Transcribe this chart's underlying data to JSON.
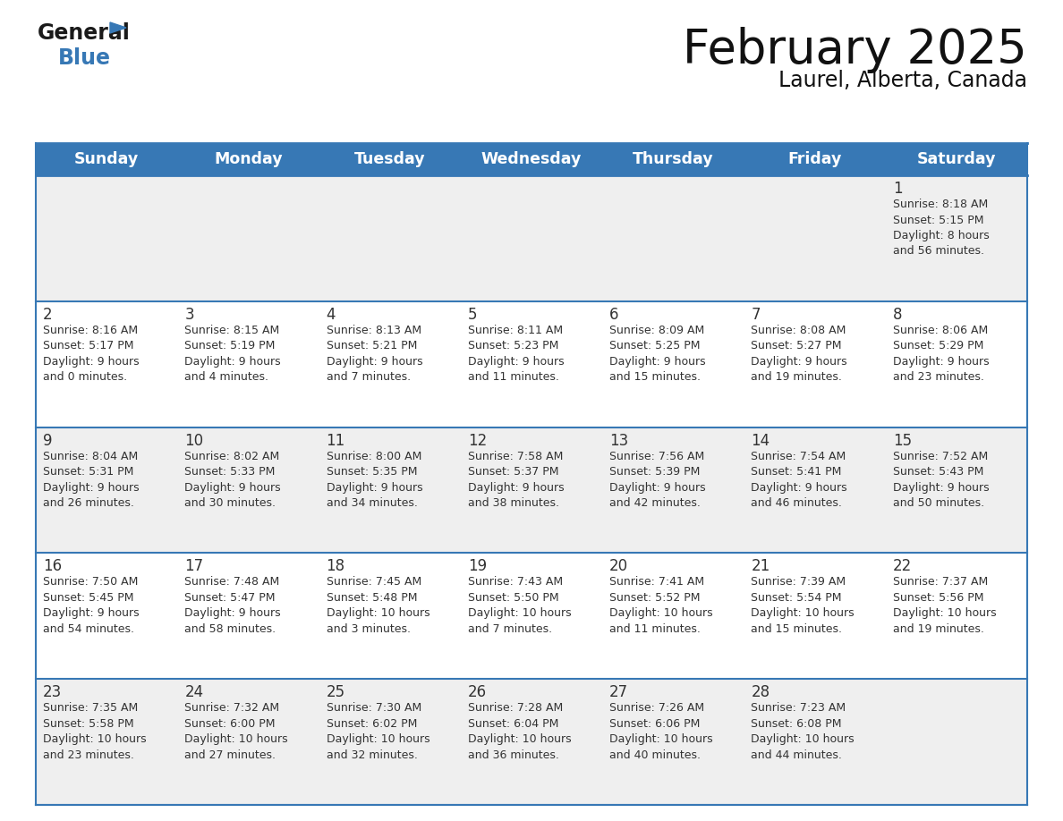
{
  "title": "February 2025",
  "subtitle": "Laurel, Alberta, Canada",
  "days_of_week": [
    "Sunday",
    "Monday",
    "Tuesday",
    "Wednesday",
    "Thursday",
    "Friday",
    "Saturday"
  ],
  "header_bg": "#3778b5",
  "header_text_color": "#ffffff",
  "row_bg_light": "#efefef",
  "row_bg_white": "#ffffff",
  "separator_color": "#3778b5",
  "text_color": "#333333",
  "title_color": "#111111",
  "calendar_data": [
    [
      null,
      null,
      null,
      null,
      null,
      null,
      {
        "day": 1,
        "sunrise": "8:18 AM",
        "sunset": "5:15 PM",
        "daylight": "8 hours and 56 minutes"
      }
    ],
    [
      {
        "day": 2,
        "sunrise": "8:16 AM",
        "sunset": "5:17 PM",
        "daylight": "9 hours and 0 minutes"
      },
      {
        "day": 3,
        "sunrise": "8:15 AM",
        "sunset": "5:19 PM",
        "daylight": "9 hours and 4 minutes"
      },
      {
        "day": 4,
        "sunrise": "8:13 AM",
        "sunset": "5:21 PM",
        "daylight": "9 hours and 7 minutes"
      },
      {
        "day": 5,
        "sunrise": "8:11 AM",
        "sunset": "5:23 PM",
        "daylight": "9 hours and 11 minutes"
      },
      {
        "day": 6,
        "sunrise": "8:09 AM",
        "sunset": "5:25 PM",
        "daylight": "9 hours and 15 minutes"
      },
      {
        "day": 7,
        "sunrise": "8:08 AM",
        "sunset": "5:27 PM",
        "daylight": "9 hours and 19 minutes"
      },
      {
        "day": 8,
        "sunrise": "8:06 AM",
        "sunset": "5:29 PM",
        "daylight": "9 hours and 23 minutes"
      }
    ],
    [
      {
        "day": 9,
        "sunrise": "8:04 AM",
        "sunset": "5:31 PM",
        "daylight": "9 hours and 26 minutes"
      },
      {
        "day": 10,
        "sunrise": "8:02 AM",
        "sunset": "5:33 PM",
        "daylight": "9 hours and 30 minutes"
      },
      {
        "day": 11,
        "sunrise": "8:00 AM",
        "sunset": "5:35 PM",
        "daylight": "9 hours and 34 minutes"
      },
      {
        "day": 12,
        "sunrise": "7:58 AM",
        "sunset": "5:37 PM",
        "daylight": "9 hours and 38 minutes"
      },
      {
        "day": 13,
        "sunrise": "7:56 AM",
        "sunset": "5:39 PM",
        "daylight": "9 hours and 42 minutes"
      },
      {
        "day": 14,
        "sunrise": "7:54 AM",
        "sunset": "5:41 PM",
        "daylight": "9 hours and 46 minutes"
      },
      {
        "day": 15,
        "sunrise": "7:52 AM",
        "sunset": "5:43 PM",
        "daylight": "9 hours and 50 minutes"
      }
    ],
    [
      {
        "day": 16,
        "sunrise": "7:50 AM",
        "sunset": "5:45 PM",
        "daylight": "9 hours and 54 minutes"
      },
      {
        "day": 17,
        "sunrise": "7:48 AM",
        "sunset": "5:47 PM",
        "daylight": "9 hours and 58 minutes"
      },
      {
        "day": 18,
        "sunrise": "7:45 AM",
        "sunset": "5:48 PM",
        "daylight": "10 hours and 3 minutes"
      },
      {
        "day": 19,
        "sunrise": "7:43 AM",
        "sunset": "5:50 PM",
        "daylight": "10 hours and 7 minutes"
      },
      {
        "day": 20,
        "sunrise": "7:41 AM",
        "sunset": "5:52 PM",
        "daylight": "10 hours and 11 minutes"
      },
      {
        "day": 21,
        "sunrise": "7:39 AM",
        "sunset": "5:54 PM",
        "daylight": "10 hours and 15 minutes"
      },
      {
        "day": 22,
        "sunrise": "7:37 AM",
        "sunset": "5:56 PM",
        "daylight": "10 hours and 19 minutes"
      }
    ],
    [
      {
        "day": 23,
        "sunrise": "7:35 AM",
        "sunset": "5:58 PM",
        "daylight": "10 hours and 23 minutes"
      },
      {
        "day": 24,
        "sunrise": "7:32 AM",
        "sunset": "6:00 PM",
        "daylight": "10 hours and 27 minutes"
      },
      {
        "day": 25,
        "sunrise": "7:30 AM",
        "sunset": "6:02 PM",
        "daylight": "10 hours and 32 minutes"
      },
      {
        "day": 26,
        "sunrise": "7:28 AM",
        "sunset": "6:04 PM",
        "daylight": "10 hours and 36 minutes"
      },
      {
        "day": 27,
        "sunrise": "7:26 AM",
        "sunset": "6:06 PM",
        "daylight": "10 hours and 40 minutes"
      },
      {
        "day": 28,
        "sunrise": "7:23 AM",
        "sunset": "6:08 PM",
        "daylight": "10 hours and 44 minutes"
      },
      null
    ]
  ]
}
